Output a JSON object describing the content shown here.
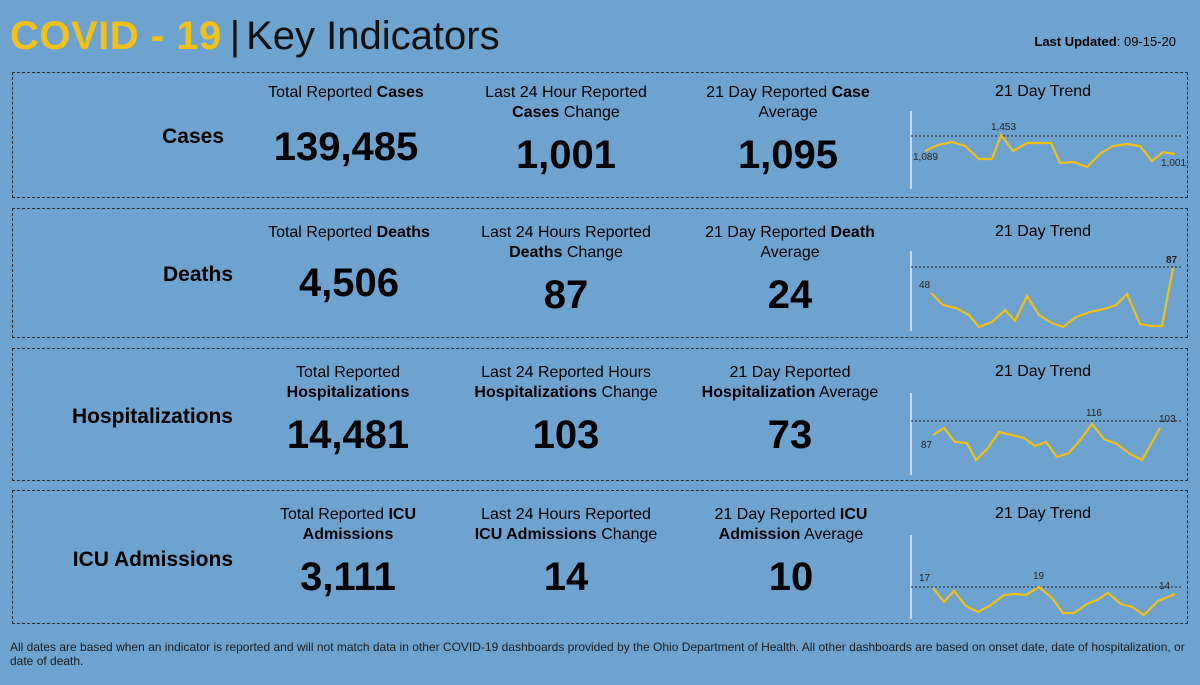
{
  "header": {
    "title_covid": "COVID - 19",
    "title_sep": "|",
    "title_rest": "Key Indicators",
    "updated_label": "Last Updated",
    "updated_value": ": 09-15-20"
  },
  "rows": [
    {
      "label": "Cases",
      "total": {
        "pre": "Total Reported ",
        "bold": "Cases",
        "post": "",
        "value": "139,485"
      },
      "last24": {
        "pre": "Last 24 Hour Reported ",
        "bold": "Cases",
        "post": " Change",
        "value": "1,001"
      },
      "avg": {
        "pre": "21 Day Reported ",
        "bold": "Case",
        "post": " Average",
        "value": "1,095"
      },
      "trend_title": "21 Day Trend",
      "trend": {
        "start_label": "1,089",
        "peak_label": "1,453",
        "end_label": "1,001"
      }
    },
    {
      "label": "Deaths",
      "total": {
        "pre": "Total Reported ",
        "bold": "Deaths",
        "post": "",
        "value": "4,506"
      },
      "last24": {
        "pre": "Last 24 Hours Reported ",
        "bold": "Deaths",
        "post": " Change",
        "value": "87"
      },
      "avg": {
        "pre": "21 Day Reported ",
        "bold": "Death",
        "post": " Average",
        "value": "24"
      },
      "trend_title": "21 Day Trend",
      "trend": {
        "start_label": "48",
        "peak_label": "87",
        "end_label": ""
      }
    },
    {
      "label": "Hospitalizations",
      "total": {
        "pre": "Total Reported ",
        "bold": "Hospitalizations",
        "post": "",
        "value": "14,481"
      },
      "last24": {
        "pre": "Last 24 Reported Hours ",
        "bold": "Hospitalizations",
        "post": " Change",
        "value": "103"
      },
      "avg": {
        "pre": "21 Day Reported ",
        "bold": "Hospitalization",
        "post": " Average",
        "value": "73"
      },
      "trend_title": "21 Day Trend",
      "trend": {
        "start_label": "87",
        "peak_label": "116",
        "end_label": "103"
      }
    },
    {
      "label": "ICU Admissions",
      "total": {
        "pre": "Total Reported ",
        "bold": "ICU Admissions",
        "post": "",
        "value": "3,111"
      },
      "last24": {
        "pre": "Last 24 Hours Reported ",
        "bold": "ICU Admissions",
        "post": " Change",
        "value": "14"
      },
      "avg": {
        "pre": "21 Day Reported ",
        "bold": "ICU Admission",
        "post": " Average",
        "value": "10"
      },
      "trend_title": "21 Day Trend",
      "trend": {
        "start_label": "17",
        "peak_label": "19",
        "end_label": "14"
      }
    }
  ],
  "footer": "All dates are based when an indicator is reported and will not match data in other COVID-19 dashboards provided by the Ohio Department of Health. All other dashboards are based on onset date, date of hospitalization, or date of death.",
  "colors": {
    "background": "#6fa3cf",
    "accent": "#f2c119",
    "trend_line": "#f2c119"
  }
}
